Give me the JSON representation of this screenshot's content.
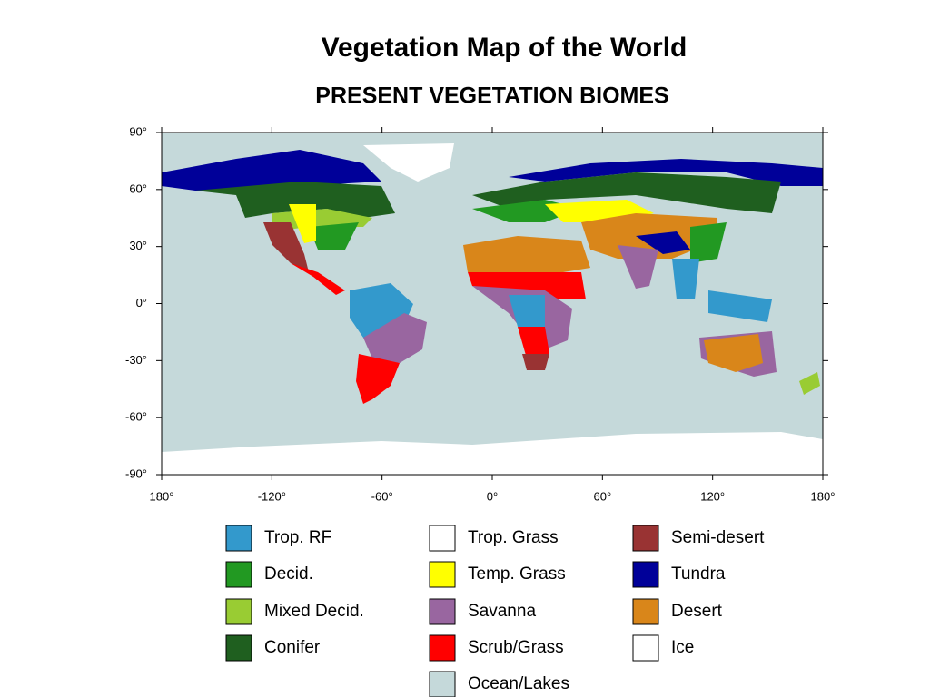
{
  "title": "Vegetation Map of the World",
  "subtitle": "PRESENT VEGETATION BIOMES",
  "map": {
    "xlim": [
      -180,
      180
    ],
    "ylim": [
      -90,
      90
    ],
    "xticks": [
      {
        "value": -180,
        "label": "180°"
      },
      {
        "value": -120,
        "label": "-120°"
      },
      {
        "value": -60,
        "label": "-60°"
      },
      {
        "value": 0,
        "label": "0°"
      },
      {
        "value": 60,
        "label": "60°"
      },
      {
        "value": 120,
        "label": "120°"
      },
      {
        "value": 180,
        "label": "180°"
      }
    ],
    "yticks": [
      {
        "value": 90,
        "label": "90°"
      },
      {
        "value": 60,
        "label": "60°"
      },
      {
        "value": 30,
        "label": "30°"
      },
      {
        "value": 0,
        "label": "0°"
      },
      {
        "value": -30,
        "label": "-30°"
      },
      {
        "value": -60,
        "label": "-60°"
      },
      {
        "value": -90,
        "label": "-90°"
      }
    ]
  },
  "legend": [
    {
      "name": "Trop. RF",
      "color": "#3399cc"
    },
    {
      "name": "Decid.",
      "color": "#229922"
    },
    {
      "name": "Mixed Decid.",
      "color": "#99cc33"
    },
    {
      "name": "Conifer",
      "color": "#1f5f1f"
    },
    {
      "name": "Trop. Grass",
      "color": "#ffffff"
    },
    {
      "name": "Temp. Grass",
      "color": "#ffff00"
    },
    {
      "name": "Savanna",
      "color": "#9966a0"
    },
    {
      "name": "Scrub/Grass",
      "color": "#ff0000"
    },
    {
      "name": "Ocean/Lakes",
      "color": "#c5d9da"
    },
    {
      "name": "Semi-desert",
      "color": "#993333"
    },
    {
      "name": "Tundra",
      "color": "#000099"
    },
    {
      "name": "Desert",
      "color": "#d9861a"
    },
    {
      "name": "Ice",
      "color": "#ffffff"
    }
  ]
}
